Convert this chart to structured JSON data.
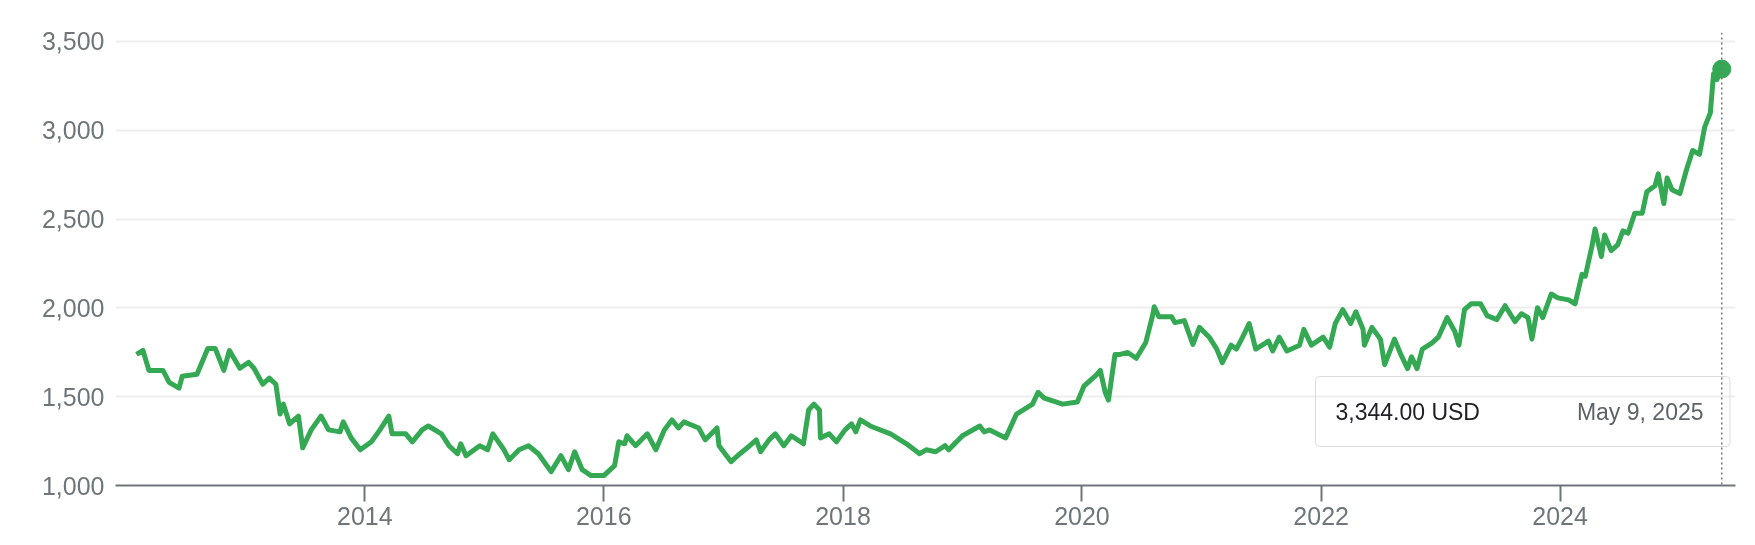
{
  "chart_data": {
    "type": "line",
    "x": [
      "2012-02-03",
      "2012-02-23",
      "2012-03-12",
      "2012-04-24",
      "2012-05-13",
      "2012-06-12",
      "2012-06-22",
      "2012-08-06",
      "2012-09-08",
      "2012-10-01",
      "2012-10-27",
      "2012-11-13",
      "2012-12-15",
      "2013-01-11",
      "2013-01-27",
      "2013-02-23",
      "2013-03-15",
      "2013-04-04",
      "2013-04-17",
      "2013-04-27",
      "2013-05-16",
      "2013-06-12",
      "2013-06-25",
      "2013-07-21",
      "2013-08-20",
      "2013-09-12",
      "2013-10-17",
      "2013-10-27",
      "2013-11-20",
      "2013-12-18",
      "2014-01-21",
      "2014-02-16",
      "2014-03-15",
      "2014-03-25",
      "2014-05-06",
      "2014-05-26",
      "2014-06-25",
      "2014-07-14",
      "2014-08-23",
      "2014-09-15",
      "2014-10-11",
      "2014-10-21",
      "2014-11-06",
      "2014-12-18",
      "2015-01-11",
      "2015-01-27",
      "2015-03-02",
      "2015-03-18",
      "2015-04-17",
      "2015-05-16",
      "2015-06-15",
      "2015-07-24",
      "2015-08-23",
      "2015-09-15",
      "2015-10-04",
      "2015-10-27",
      "2015-11-23",
      "2016-01-01",
      "2016-02-03",
      "2016-02-16",
      "2016-03-05",
      "2016-03-12",
      "2016-04-07",
      "2016-05-13",
      "2016-06-08",
      "2016-07-04",
      "2016-07-27",
      "2016-08-16",
      "2016-09-02",
      "2016-10-17",
      "2016-11-06",
      "2016-12-12",
      "2016-12-18",
      "2017-01-24",
      "2017-02-20",
      "2017-03-22",
      "2017-04-11",
      "2017-04-24",
      "2017-05-20",
      "2017-06-08",
      "2017-07-04",
      "2017-07-27",
      "2017-09-02",
      "2017-09-18",
      "2017-10-04",
      "2017-10-21",
      "2017-10-24",
      "2017-11-20",
      "2017-12-12",
      "2018-01-07",
      "2018-01-27",
      "2018-02-09",
      "2018-02-23",
      "2018-03-25",
      "2018-05-26",
      "2018-07-14",
      "2018-08-23",
      "2018-09-12",
      "2018-10-11",
      "2018-11-09",
      "2018-11-20",
      "2019-01-01",
      "2019-02-23",
      "2019-03-08",
      "2019-03-25",
      "2019-05-13",
      "2019-06-15",
      "2019-08-03",
      "2019-08-20",
      "2019-09-08",
      "2019-11-03",
      "2019-12-18",
      "2020-01-07",
      "2020-02-16",
      "2020-02-26",
      "2020-03-12",
      "2020-03-22",
      "2020-04-11",
      "2020-04-27",
      "2020-05-20",
      "2020-06-15",
      "2020-07-14",
      "2020-08-03",
      "2020-08-09",
      "2020-08-23",
      "2020-10-01",
      "2020-10-11",
      "2020-11-09",
      "2020-12-05",
      "2020-12-25",
      "2021-01-24",
      "2021-02-16",
      "2021-03-05",
      "2021-04-01",
      "2021-04-17",
      "2021-05-06",
      "2021-05-26",
      "2021-06-15",
      "2021-07-24",
      "2021-08-06",
      "2021-08-26",
      "2021-09-18",
      "2021-10-27",
      "2021-11-09",
      "2021-12-02",
      "2022-01-07",
      "2022-01-27",
      "2022-02-13",
      "2022-03-08",
      "2022-04-01",
      "2022-04-17",
      "2022-05-09",
      "2022-05-13",
      "2022-06-05",
      "2022-07-01",
      "2022-07-14",
      "2022-08-13",
      "2022-09-02",
      "2022-09-22",
      "2022-10-04",
      "2022-10-21",
      "2022-11-06",
      "2022-12-05",
      "2022-12-25",
      "2023-01-21",
      "2023-02-13",
      "2023-02-26",
      "2023-03-15",
      "2023-04-04",
      "2023-05-03",
      "2023-05-23",
      "2023-06-22",
      "2023-07-17",
      "2023-08-16",
      "2023-09-05",
      "2023-09-25",
      "2023-10-07",
      "2023-10-24",
      "2023-11-09",
      "2023-12-05",
      "2023-12-25",
      "2024-01-27",
      "2024-02-16",
      "2024-03-08",
      "2024-03-18",
      "2024-04-07",
      "2024-04-17",
      "2024-05-06",
      "2024-05-16",
      "2024-06-05",
      "2024-06-25",
      "2024-07-11",
      "2024-07-27",
      "2024-08-16",
      "2024-09-08",
      "2024-09-22",
      "2024-10-17",
      "2024-10-27",
      "2024-11-13",
      "2024-11-23",
      "2024-12-08",
      "2025-01-01",
      "2025-01-21",
      "2025-02-09",
      "2025-03-02",
      "2025-03-18",
      "2025-04-04",
      "2025-04-14",
      "2025-04-24",
      "2025-05-09"
    ],
    "series": [
      {
        "color": "#34a853",
        "values": [
          1738,
          1760,
          1648,
          1648,
          1581,
          1548,
          1615,
          1626,
          1771,
          1771,
          1648,
          1760,
          1660,
          1693,
          1660,
          1570,
          1604,
          1570,
          1402,
          1458,
          1347,
          1391,
          1212,
          1313,
          1391,
          1313,
          1302,
          1358,
          1268,
          1201,
          1246,
          1313,
          1391,
          1291,
          1291,
          1246,
          1313,
          1335,
          1291,
          1224,
          1179,
          1235,
          1168,
          1224,
          1201,
          1291,
          1201,
          1145,
          1201,
          1224,
          1179,
          1078,
          1168,
          1089,
          1190,
          1089,
          1056,
          1056,
          1112,
          1246,
          1235,
          1280,
          1224,
          1291,
          1201,
          1313,
          1369,
          1324,
          1358,
          1324,
          1257,
          1324,
          1224,
          1134,
          1179,
          1224,
          1257,
          1190,
          1257,
          1291,
          1224,
          1280,
          1235,
          1425,
          1458,
          1425,
          1268,
          1291,
          1246,
          1313,
          1347,
          1302,
          1369,
          1335,
          1291,
          1235,
          1179,
          1201,
          1190,
          1224,
          1201,
          1280,
          1335,
          1302,
          1313,
          1268,
          1402,
          1458,
          1525,
          1492,
          1458,
          1470,
          1559,
          1626,
          1648,
          1525,
          1481,
          1738,
          1738,
          1749,
          1716,
          1805,
          1950,
          2006,
          1950,
          1950,
          1917,
          1928,
          1794,
          1890,
          1835,
          1768,
          1691,
          1790,
          1768,
          1835,
          1912,
          1768,
          1813,
          1757,
          1835,
          1757,
          1790,
          1879,
          1790,
          1835,
          1779,
          1912,
          1990,
          1912,
          1978,
          1879,
          1790,
          1890,
          1824,
          1680,
          1824,
          1735,
          1658,
          1724,
          1658,
          1768,
          1801,
          1835,
          1945,
          1868,
          1790,
          1990,
          2023,
          2023,
          1956,
          1934,
          2012,
          1923,
          1967,
          1945,
          1824,
          2001,
          1945,
          2078,
          2056,
          2045,
          2023,
          2189,
          2178,
          2344,
          2444,
          2289,
          2410,
          2322,
          2355,
          2433,
          2421,
          2532,
          2532,
          2654,
          2687,
          2754,
          2587,
          2731,
          2665,
          2643,
          2776,
          2886,
          2864,
          3019,
          3097,
          3318,
          3285,
          3344
        ]
      }
    ],
    "xlim": [
      "2011-12-01",
      "2025-06-20"
    ],
    "xticks": [
      {
        "value": "2014-01-01",
        "label": "2014"
      },
      {
        "value": "2016-01-01",
        "label": "2016"
      },
      {
        "value": "2018-01-01",
        "label": "2018"
      },
      {
        "value": "2020-01-01",
        "label": "2020"
      },
      {
        "value": "2022-01-01",
        "label": "2022"
      },
      {
        "value": "2024-01-01",
        "label": "2024"
      }
    ],
    "ylim": [
      1000,
      3550
    ],
    "yticks": [
      {
        "value": 1000,
        "label": "1,000"
      },
      {
        "value": 1500,
        "label": "1,500"
      },
      {
        "value": 2000,
        "label": "2,000"
      },
      {
        "value": 2500,
        "label": "2,500"
      },
      {
        "value": 3000,
        "label": "3,000"
      },
      {
        "value": 3500,
        "label": "3,500"
      }
    ],
    "grid": "y",
    "marker": "none",
    "line_style": "solid",
    "ref_lines": [
      {
        "axis": "x",
        "value": "2025-05-09",
        "color": "#777777",
        "line_style": "dotted"
      }
    ],
    "annotations": [
      "3,344.00 USD",
      "May 9, 2025"
    ]
  }
}
